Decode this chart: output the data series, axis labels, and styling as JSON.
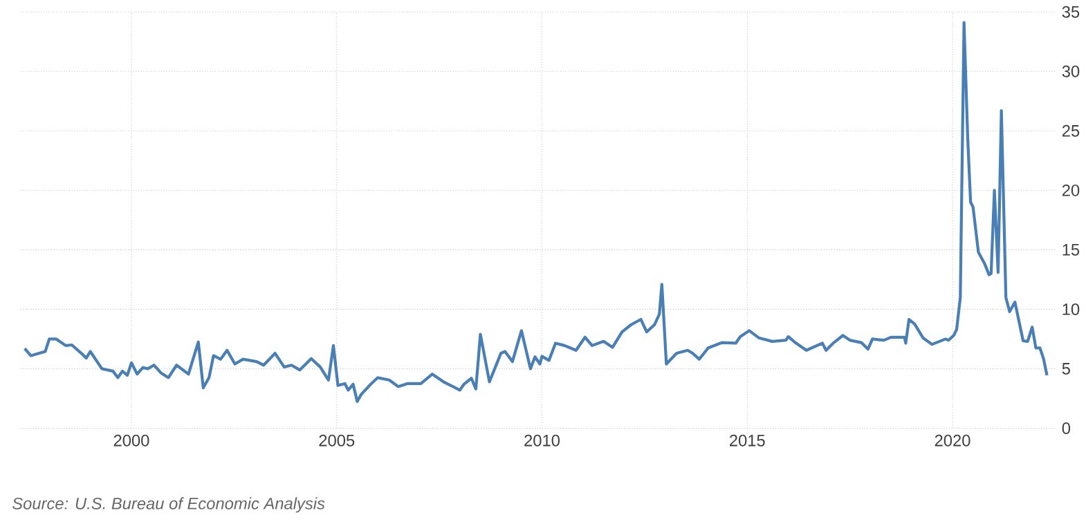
{
  "chart_data": {
    "type": "line",
    "color": "#4a7fb5",
    "grid": true,
    "marker": "none",
    "line_style": "solid",
    "xlim": [
      1997.3,
      2022.5
    ],
    "ylim": [
      0,
      35
    ],
    "xticks": [
      2000,
      2005,
      2010,
      2015,
      2020
    ],
    "yticks": [
      0,
      5,
      10,
      15,
      20,
      25,
      30,
      35
    ],
    "annotations": [
      "*Source: U.S. Bureau of Economic Analysis*"
    ],
    "x": [
      1997.4,
      1997.55,
      1997.9,
      1998.0,
      1998.17,
      1998.4,
      1998.55,
      1998.78,
      1998.9,
      1999.0,
      1999.28,
      1999.55,
      1999.67,
      1999.78,
      1999.9,
      2000.0,
      2000.14,
      2000.28,
      2000.4,
      2000.55,
      2000.72,
      2000.9,
      2001.1,
      2001.39,
      2001.63,
      2001.75,
      2001.89,
      2002.0,
      2002.17,
      2002.33,
      2002.52,
      2002.72,
      2003.05,
      2003.22,
      2003.5,
      2003.72,
      2003.9,
      2004.1,
      2004.38,
      2004.6,
      2004.8,
      2004.92,
      2005.03,
      2005.2,
      2005.28,
      2005.4,
      2005.5,
      2005.6,
      2005.83,
      2006.0,
      2006.28,
      2006.5,
      2006.72,
      2007.05,
      2007.33,
      2007.6,
      2007.83,
      2008.0,
      2008.1,
      2008.28,
      2008.39,
      2008.5,
      2008.72,
      2009.0,
      2009.1,
      2009.28,
      2009.5,
      2009.72,
      2009.83,
      2009.95,
      2010.0,
      2010.17,
      2010.33,
      2010.55,
      2010.83,
      2011.05,
      2011.22,
      2011.5,
      2011.72,
      2011.95,
      2012.17,
      2012.41,
      2012.55,
      2012.74,
      2012.86,
      2012.92,
      2013.03,
      2013.28,
      2013.55,
      2013.67,
      2013.83,
      2014.05,
      2014.39,
      2014.72,
      2014.83,
      2015.05,
      2015.28,
      2015.61,
      2015.94,
      2016.0,
      2016.17,
      2016.44,
      2016.83,
      2016.92,
      2017.11,
      2017.33,
      2017.5,
      2017.78,
      2017.94,
      2018.05,
      2018.33,
      2018.5,
      2018.83,
      2018.86,
      2018.94,
      2019.08,
      2019.28,
      2019.5,
      2019.83,
      2019.9,
      2020.03,
      2020.1,
      2020.19,
      2020.28,
      2020.37,
      2020.44,
      2020.5,
      2020.63,
      2020.78,
      2020.89,
      2020.94,
      2021.02,
      2021.11,
      2021.19,
      2021.3,
      2021.39,
      2021.52,
      2021.72,
      2021.83,
      2021.94,
      2022.03,
      2022.13,
      2022.22,
      2022.3
    ],
    "values": [
      6.7,
      6.1,
      6.45,
      7.5,
      7.5,
      6.95,
      7.0,
      6.3,
      5.9,
      6.45,
      5.0,
      4.8,
      4.25,
      4.8,
      4.45,
      5.5,
      4.55,
      5.1,
      5.0,
      5.3,
      4.65,
      4.25,
      5.3,
      4.55,
      7.25,
      3.4,
      4.25,
      6.1,
      5.8,
      6.55,
      5.4,
      5.8,
      5.6,
      5.3,
      6.3,
      5.15,
      5.3,
      4.9,
      5.85,
      5.15,
      4.05,
      6.95,
      3.6,
      3.75,
      3.2,
      3.7,
      2.25,
      2.85,
      3.7,
      4.25,
      4.05,
      3.5,
      3.75,
      3.75,
      4.55,
      3.9,
      3.5,
      3.2,
      3.7,
      4.2,
      3.3,
      7.9,
      3.9,
      6.3,
      6.45,
      5.6,
      8.2,
      5.0,
      6.0,
      5.4,
      6.05,
      5.7,
      7.15,
      6.95,
      6.55,
      7.65,
      6.95,
      7.3,
      6.8,
      8.1,
      8.7,
      9.15,
      8.1,
      8.7,
      9.6,
      12.1,
      5.4,
      6.3,
      6.55,
      6.3,
      5.8,
      6.75,
      7.2,
      7.15,
      7.7,
      8.2,
      7.6,
      7.3,
      7.4,
      7.7,
      7.2,
      6.55,
      7.15,
      6.55,
      7.2,
      7.8,
      7.4,
      7.2,
      6.65,
      7.5,
      7.4,
      7.65,
      7.65,
      7.15,
      9.15,
      8.75,
      7.6,
      7.05,
      7.5,
      7.4,
      7.8,
      8.3,
      11.0,
      34.1,
      24.4,
      19.0,
      18.6,
      14.8,
      13.85,
      12.9,
      13.0,
      20.0,
      13.1,
      26.7,
      11.0,
      9.8,
      10.6,
      7.35,
      7.3,
      8.5,
      6.75,
      6.75,
      5.8,
      4.45
    ]
  }
}
